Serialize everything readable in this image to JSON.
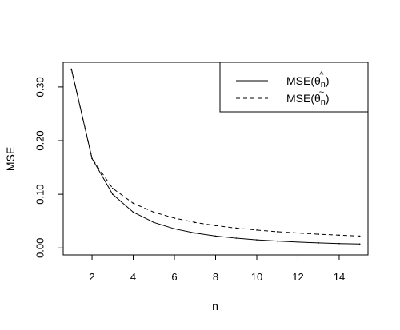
{
  "chart_data": {
    "type": "line",
    "title": "",
    "xlabel": "n",
    "ylabel": "MSE",
    "xlim": [
      0.6,
      15.4
    ],
    "ylim": [
      -0.013,
      0.346
    ],
    "xticks": [
      2,
      4,
      6,
      8,
      10,
      12,
      14
    ],
    "yticks": [
      0.0,
      0.1,
      0.2,
      0.3
    ],
    "ytick_labels": [
      "0.00",
      "0.10",
      "0.20",
      "0.30"
    ],
    "grid": false,
    "legend_position": "top-right",
    "x": [
      1,
      2,
      3,
      4,
      5,
      6,
      7,
      8,
      9,
      10,
      11,
      12,
      13,
      14,
      15
    ],
    "series": [
      {
        "legend_base": "MSE(",
        "legend_symbol": "θ",
        "legend_accent": "^",
        "legend_sub": "n",
        "legend_close": ")",
        "line_style": "solid",
        "values": [
          0.3333,
          0.1667,
          0.1,
          0.0667,
          0.0476,
          0.0357,
          0.0278,
          0.0222,
          0.0182,
          0.0152,
          0.0128,
          0.011,
          0.0095,
          0.0083,
          0.0074
        ]
      },
      {
        "legend_base": "MSE(",
        "legend_symbol": "θ",
        "legend_accent": "~",
        "legend_sub": "n",
        "legend_close": ")",
        "line_style": "dashed",
        "values": [
          0.3333,
          0.1667,
          0.1111,
          0.0833,
          0.0667,
          0.0556,
          0.0476,
          0.0417,
          0.037,
          0.0333,
          0.0303,
          0.0278,
          0.0256,
          0.0238,
          0.0222
        ]
      }
    ]
  }
}
